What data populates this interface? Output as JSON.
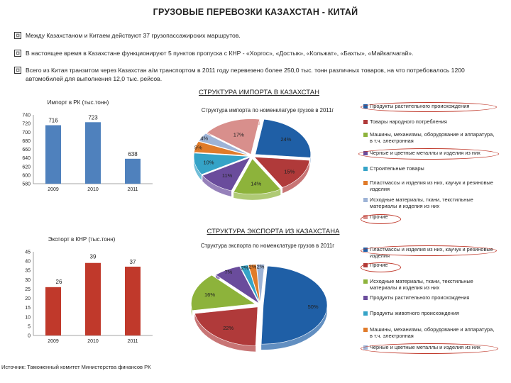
{
  "title": "ГРУЗОВЫЕ ПЕРЕВОЗКИ КАЗАХСТАН - КИТАЙ",
  "bullets": [
    "Между Казахстаном и Китаем действуют 37 грузопассажирских маршрутов.",
    "В настоящее время в Казахстане функционируют 5 пунктов пропуска с КНР - «Хоргос», «Достык», «Кольжат», «Бахты», «Майкапчагай».",
    "Всего из Китая транзитом через Казахстан а/м транспортом в 2011 году перевезено более 250,0 тыс. тонн различных товаров, на что потребовалось 1200 автомобилей для выполнения 12,0 тыс. рейсов."
  ],
  "import_section_title": "СТРУКТУРА ИМПОРТА В КАЗАХСТАН",
  "export_section_title": "СТРУКТУРА ЭКСПОРТА ИЗ КАЗАХСТАНА",
  "source": "Источник: Таможенный комитет Министерства финансов РК",
  "colors": {
    "bar": "#4f81bd",
    "bar_export": "#c0392b",
    "highlight": "#c0392b"
  },
  "chart_data": [
    {
      "id": "import_bar",
      "type": "bar",
      "title": "Импорт в РК (тыс.тонн)",
      "categories": [
        "2009",
        "2010",
        "2011"
      ],
      "values": [
        716,
        723,
        638
      ],
      "ylim": [
        580,
        740
      ],
      "yticks": [
        580,
        600,
        620,
        640,
        660,
        680,
        700,
        720,
        740
      ],
      "color": "#4f81bd"
    },
    {
      "id": "import_pie",
      "type": "pie",
      "title": "Структура импорта по номенклатуре грузов в 2011г",
      "slices": [
        {
          "label": "Продукты растительного происхождения",
          "value": 24,
          "display": "24%",
          "color": "#1f5fa6"
        },
        {
          "label": "Товары народного потребления",
          "value": 15,
          "display": "15%",
          "color": "#b03a3a"
        },
        {
          "label": "Машины, механизмы, оборудование и аппаратура, в т.ч. электронная",
          "value": 14,
          "display": "14%",
          "color": "#8db33b"
        },
        {
          "label": "Черные и цветные металлы и изделия из них",
          "value": 11,
          "display": "11%",
          "color": "#6a4c9c"
        },
        {
          "label": "Строительные товары",
          "value": 10,
          "display": "10%",
          "color": "#35a3c7"
        },
        {
          "label": "Пластмассы и изделия из них, каучук и резиновые изделия",
          "value": 5,
          "display": "5%",
          "color": "#e07b2a"
        },
        {
          "label": "Исходные материалы, ткани, текстильные материалы и изделия из них",
          "value": 4,
          "display": "4%",
          "color": "#9db3d6"
        },
        {
          "label": "Прочие",
          "value": 17,
          "display": "17%",
          "color": "#d88f8c"
        }
      ],
      "legend": [
        "Продукты растительного происхождения",
        "Товары народного потребления",
        "Машины, механизмы, оборудование и аппаратура, в т.ч. электронная",
        "Черные и цветные металлы и изделия из них",
        "Строительные товары",
        "Пластмассы и изделия из них, каучук и резиновые изделия",
        "Исходные материалы, ткани, текстильные материалы и изделия из них",
        "Прочие"
      ]
    },
    {
      "id": "export_bar",
      "type": "bar",
      "title": "Экспорт в КНР (тыс.тонн)",
      "categories": [
        "2009",
        "2010",
        "2011"
      ],
      "values": [
        26,
        39,
        37
      ],
      "ylim": [
        0,
        45
      ],
      "yticks": [
        0,
        5,
        10,
        15,
        20,
        25,
        30,
        35,
        40,
        45
      ],
      "color": "#c0392b"
    },
    {
      "id": "export_pie",
      "type": "pie",
      "title": "Структура экспорта по номенклатуре грузов в 2011г",
      "slices": [
        {
          "label": "Пластмассы и изделия из них, каучук и резиновые изделия",
          "value": 50,
          "display": "50%",
          "color": "#1f5fa6"
        },
        {
          "label": "Прочие",
          "value": 22,
          "display": "22%",
          "color": "#b03a3a"
        },
        {
          "label": "Исходные материалы, ткани, текстильные материалы и изделия из них",
          "value": 16,
          "display": "16%",
          "color": "#8db33b"
        },
        {
          "label": "Продукты растительного происхождения",
          "value": 7,
          "display": "7%",
          "color": "#6a4c9c"
        },
        {
          "label": "Продукты животного происхождения",
          "value": 2,
          "display": "2%",
          "color": "#35a3c7"
        },
        {
          "label": "Машины, механизмы, оборудование и аппаратура, в т.ч. электронная",
          "value": 2,
          "display": "2%",
          "color": "#e07b2a"
        },
        {
          "label": "Черные и цветные металлы и изделия из них",
          "value": 2,
          "display": "2%",
          "color": "#9db3d6"
        }
      ],
      "legend": [
        "Пластмассы и изделия из них, каучук и резиновые изделия",
        "Прочие",
        "Исходные материалы, ткани, текстильные материалы и изделия из них",
        "Продукты растительного происхождения",
        "Продукты животного происхождения",
        "Машины, механизмы, оборудование и аппаратура, в т.ч. электронная",
        "Черные и цветные металлы и изделия из них"
      ]
    }
  ]
}
